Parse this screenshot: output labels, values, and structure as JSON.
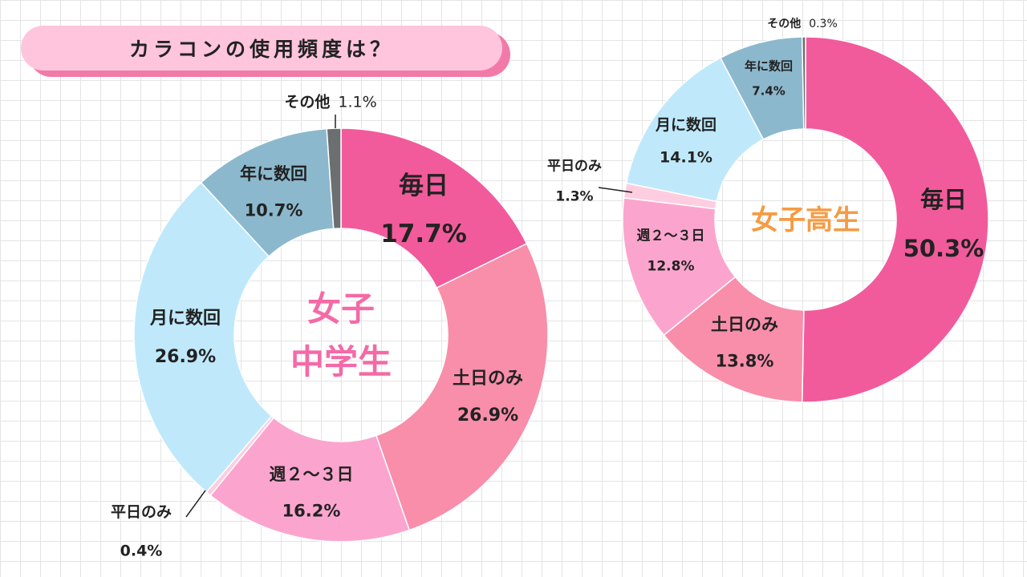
{
  "header": {
    "title": "カラコンの使用頻度は？"
  },
  "colors": {
    "daily": "#f25b9b",
    "weekend": "#f88eaa",
    "weekly": "#fba5ce",
    "weekday": "#ffcde0",
    "monthly": "#bfe9fb",
    "yearly": "#8cb8cd",
    "other": "#6c6f70",
    "middle_center": "#f46aa6",
    "high_center": "#f59b43",
    "label_text": "#222222"
  },
  "chart_data": [
    {
      "type": "pie",
      "center_label_lines": [
        "女子",
        "中学生"
      ],
      "slices": [
        {
          "label": "毎日",
          "value": 17.7,
          "value_text": "17.7%",
          "color": "#f25b9b"
        },
        {
          "label": "土日のみ",
          "value": 26.9,
          "value_text": "26.9%",
          "color": "#f88eaa"
        },
        {
          "label": "週２～３日",
          "value": 16.2,
          "value_text": "16.2%",
          "color": "#fba5ce"
        },
        {
          "label": "平日のみ",
          "value": 0.4,
          "value_text": "0.4%",
          "color": "#ffcde0"
        },
        {
          "label": "月に数回",
          "value": 26.9,
          "value_text": "26.9%",
          "color": "#bfe9fb"
        },
        {
          "label": "年に数回",
          "value": 10.7,
          "value_text": "10.7%",
          "color": "#8cb8cd"
        },
        {
          "label": "その他",
          "value": 1.1,
          "value_text": "1.1%",
          "color": "#6c6f70"
        }
      ]
    },
    {
      "type": "pie",
      "center_label_lines": [
        "女子高生"
      ],
      "slices": [
        {
          "label": "毎日",
          "value": 50.3,
          "value_text": "50.3%",
          "color": "#f25b9b"
        },
        {
          "label": "土日のみ",
          "value": 13.8,
          "value_text": "13.8%",
          "color": "#f88eaa"
        },
        {
          "label": "週２～３日",
          "value": 12.8,
          "value_text": "12.8%",
          "color": "#fba5ce"
        },
        {
          "label": "平日のみ",
          "value": 1.3,
          "value_text": "1.3%",
          "color": "#ffcde0"
        },
        {
          "label": "月に数回",
          "value": 14.1,
          "value_text": "14.1%",
          "color": "#bfe9fb"
        },
        {
          "label": "年に数回",
          "value": 7.4,
          "value_text": "7.4%",
          "color": "#8cb8cd"
        },
        {
          "label": "その他",
          "value": 0.3,
          "value_text": "0.3%",
          "color": "#6c6f70"
        }
      ]
    }
  ]
}
